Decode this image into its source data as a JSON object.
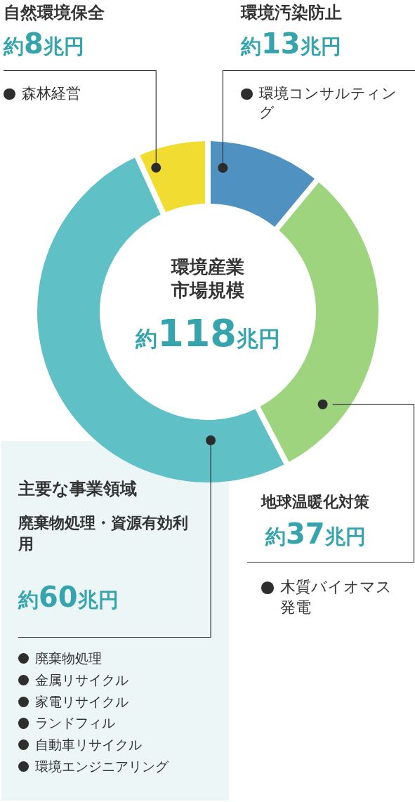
{
  "chart_data": {
    "type": "donut",
    "title": "環境産業市場規模",
    "subtitle": "約118兆円",
    "categories": [
      "環境汚染防止",
      "地球温暖化対策",
      "廃棄物処理・資源有効利用",
      "自然環境保全"
    ],
    "values": [
      13,
      37,
      60,
      8
    ],
    "colors": [
      "#4f92c2",
      "#9dd47d",
      "#5fc0c6",
      "#f1dd31"
    ],
    "value_labels": [
      "約13兆円",
      "約37兆円",
      "約60兆円",
      "約8兆円"
    ],
    "annotations": [
      "主要な事業領域",
      {
        "text": "環境コンサルティング",
        "x": "環境汚染防止"
      },
      {
        "text": "木質バイオマス発電",
        "x": "地球温暖化対策"
      },
      {
        "text": "廃棄物処理",
        "x": "廃棄物処理・資源有効利用"
      },
      {
        "text": "金属リサイクル",
        "x": "廃棄物処理・資源有効利用"
      },
      {
        "text": "家電リサイクル",
        "x": "廃棄物処理・資源有効利用"
      },
      {
        "text": "ランドフィル",
        "x": "廃棄物処理・資源有効利用"
      },
      {
        "text": "自動車リサイクル",
        "x": "廃棄物処理・資源有効利用"
      },
      {
        "text": "環境エンジニアリング",
        "x": "廃棄物処理・資源有効利用"
      },
      {
        "text": "森林経営",
        "x": "自然環境保全"
      }
    ]
  }
}
